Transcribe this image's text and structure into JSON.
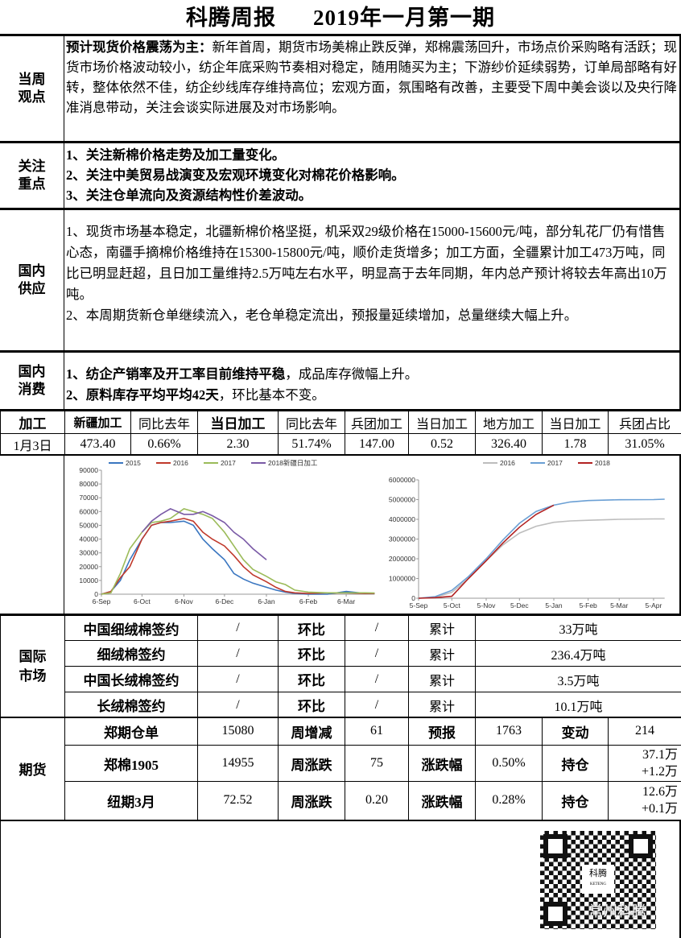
{
  "title": {
    "left": "科腾周报",
    "right": "2019年一月第一期"
  },
  "view": {
    "label": "当周观点",
    "lead": "预计现货价格震荡为主：",
    "text": "新年首周，期货市场美棉止跌反弹，郑棉震荡回升，市场点价采购略有活跃；现货市场价格波动较小，纺企年底采购节奏相对稳定，随用随买为主；下游纱价延续弱势，订单局部略有好转，整体依然不佳，纺企纱线库存维持高位；宏观方面，氛围略有改善，主要受下周中美会谈以及央行降准消息带动，关注会谈实际进展及对市场影响。"
  },
  "focus": {
    "label": "关注重点",
    "items": [
      "1、关注新棉价格走势及加工量变化。",
      "2、关注中美贸易战演变及宏观环境变化对棉花价格影响。",
      "3、关注仓单流向及资源结构性价差波动。"
    ]
  },
  "supply": {
    "label": "国内供应",
    "p1": "1、现货市场基本稳定，北疆新棉价格坚挺，机采双29级价格在15000-15600元/吨，部分轧花厂仍有惜售心态，南疆手摘棉价格维持在15300-15800元/吨，顺价走货增多；加工方面，全疆累计加工473万吨，同比已明显赶超，且日加工量维持2.5万吨左右水平，明显高于去年同期，年内总产预计将较去年高出10万吨。",
    "p2": "2、本周期货新仓单继续流入，老仓单稳定流出，预报量延续增加，总量继续大幅上升。"
  },
  "consume": {
    "label": "国内消费",
    "i1_bold": "1、纺企产销率及开工率目前维持平稳",
    "i1_rest": "，成品库存微幅上升。",
    "i2_bold": "2、原料库存平均平均42天",
    "i2_rest": "，环比基本不变。"
  },
  "processing": {
    "label": "加工",
    "headers": [
      "新疆加工",
      "同比去年",
      "当日加工",
      "同比去年",
      "兵团加工",
      "当日加工",
      "地方加工",
      "当日加工",
      "兵团占比"
    ],
    "date": "1月3日",
    "values": [
      "473.40",
      "0.66%",
      "2.30",
      "51.74%",
      "147.00",
      "0.52",
      "326.40",
      "1.78",
      "31.05%"
    ]
  },
  "chart_data": [
    {
      "type": "line",
      "ylim": [
        0,
        90000
      ],
      "yticks": [
        "0",
        "10000",
        "20000",
        "30000",
        "40000",
        "50000",
        "60000",
        "70000",
        "80000",
        "90000"
      ],
      "xticks": [
        "6-Sep",
        "6-Oct",
        "6-Nov",
        "6-Dec",
        "6-Jan",
        "6-Feb",
        "6-Mar"
      ],
      "legend": "top",
      "x": [
        "6-Sep",
        "13-Sep",
        "20-Sep",
        "27-Sep",
        "6-Oct",
        "13-Oct",
        "20-Oct",
        "27-Oct",
        "6-Nov",
        "13-Nov",
        "20-Nov",
        "27-Nov",
        "6-Dec",
        "13-Dec",
        "20-Dec",
        "27-Dec",
        "6-Jan",
        "13-Jan",
        "20-Jan",
        "27-Jan",
        "6-Feb",
        "20-Feb",
        "6-Mar",
        "20-Mar",
        "27-Mar"
      ],
      "series": [
        {
          "name": "2015",
          "color": "#3a76c0",
          "values": [
            0,
            2000,
            10000,
            25000,
            40000,
            50000,
            52000,
            52000,
            53000,
            50000,
            40000,
            33000,
            25000,
            15000,
            11000,
            8000,
            5000,
            3000,
            1500,
            500,
            0,
            0,
            2000,
            500,
            500
          ]
        },
        {
          "name": "2016",
          "color": "#c0392b",
          "values": [
            0,
            2000,
            12000,
            20000,
            40000,
            50000,
            52000,
            53000,
            55000,
            53000,
            45000,
            40000,
            35000,
            28000,
            20000,
            14000,
            9000,
            5000,
            2000,
            1000,
            500,
            1000,
            1000,
            500,
            500
          ]
        },
        {
          "name": "2017",
          "color": "#9bbb59",
          "values": [
            0,
            1000,
            15000,
            33000,
            45000,
            52000,
            53000,
            55000,
            62000,
            60000,
            58000,
            55000,
            45000,
            35000,
            25000,
            18000,
            13000,
            9000,
            7000,
            3000,
            1500,
            1000,
            1000,
            1000,
            800
          ]
        },
        {
          "name": "2018新疆日加工",
          "color": "#7a5aa6",
          "values": [
            null,
            null,
            null,
            null,
            45000,
            53000,
            58000,
            62000,
            58000,
            58000,
            60000,
            57000,
            52000,
            45000,
            40000,
            33000,
            25000,
            null,
            null,
            null,
            null,
            null,
            null,
            null,
            null
          ]
        }
      ]
    },
    {
      "type": "line",
      "ylim": [
        0,
        6000000
      ],
      "yticks": [
        "0",
        "1000000",
        "2000000",
        "3000000",
        "4000000",
        "5000000",
        "6000000"
      ],
      "xticks": [
        "5-Sep",
        "5-Oct",
        "5-Nov",
        "5-Dec",
        "5-Jan",
        "5-Feb",
        "5-Mar",
        "5-Apr"
      ],
      "legend": "top",
      "x": [
        "5-Sep",
        "20-Sep",
        "5-Oct",
        "20-Oct",
        "5-Nov",
        "20-Nov",
        "5-Dec",
        "20-Dec",
        "5-Jan",
        "20-Jan",
        "5-Feb",
        "5-Mar",
        "5-Apr",
        "15-Apr"
      ],
      "series": [
        {
          "name": "2016",
          "color": "#bdbdbd",
          "values": [
            0,
            50000,
            300000,
            1000000,
            1900000,
            2700000,
            3300000,
            3650000,
            3850000,
            3920000,
            3950000,
            4000000,
            4020000,
            4020000
          ]
        },
        {
          "name": "2017",
          "color": "#6a9fd4",
          "values": [
            0,
            80000,
            400000,
            1100000,
            2000000,
            2950000,
            3800000,
            4400000,
            4720000,
            4880000,
            4950000,
            4990000,
            5000000,
            5020000
          ]
        },
        {
          "name": "2018",
          "color": "#b22222",
          "values": [
            0,
            30000,
            100000,
            1000000,
            1900000,
            2800000,
            3600000,
            4250000,
            4720000,
            null,
            null,
            null,
            null,
            null
          ]
        }
      ]
    }
  ],
  "intl": {
    "label": "国际市场",
    "rows": [
      {
        "name": "中国细绒棉签约",
        "v1": "/",
        "k2": "环比",
        "v2": "/",
        "k3": "累计",
        "v3": "33万吨"
      },
      {
        "name": "细绒棉签约",
        "v1": "/",
        "k2": "环比",
        "v2": "/",
        "k3": "累计",
        "v3": "236.4万吨"
      },
      {
        "name": "中国长绒棉签约",
        "v1": "/",
        "k2": "环比",
        "v2": "/",
        "k3": "累计",
        "v3": "3.5万吨"
      },
      {
        "name": "长绒棉签约",
        "v1": "/",
        "k2": "环比",
        "v2": "/",
        "k3": "累计",
        "v3": "10.1万吨"
      }
    ]
  },
  "futures": {
    "label": "期货",
    "rows": [
      {
        "name": "郑期仓单",
        "v1": "15080",
        "k2": "周增减",
        "v2": "61",
        "k3": "预报",
        "v3": "1763",
        "k4": "变动",
        "v4": "214",
        "v4b": ""
      },
      {
        "name": "郑棉1905",
        "v1": "14955",
        "k2": "周涨跌",
        "v2": "75",
        "k3": "涨跌幅",
        "v3": "0.50%",
        "k4": "持仓",
        "v4": "37.1万",
        "v4b": "+1.2万"
      },
      {
        "name": "纽期3月",
        "v1": "72.52",
        "k2": "周涨跌",
        "v2": "0.20",
        "k3": "涨跌幅",
        "v3": "0.28%",
        "k4": "持仓",
        "v4": "12.6万",
        "v4b": "+0.1万"
      }
    ]
  },
  "qr": {
    "center": "科腾",
    "center_en": "KETENG",
    "watermark": "常州科腾"
  }
}
